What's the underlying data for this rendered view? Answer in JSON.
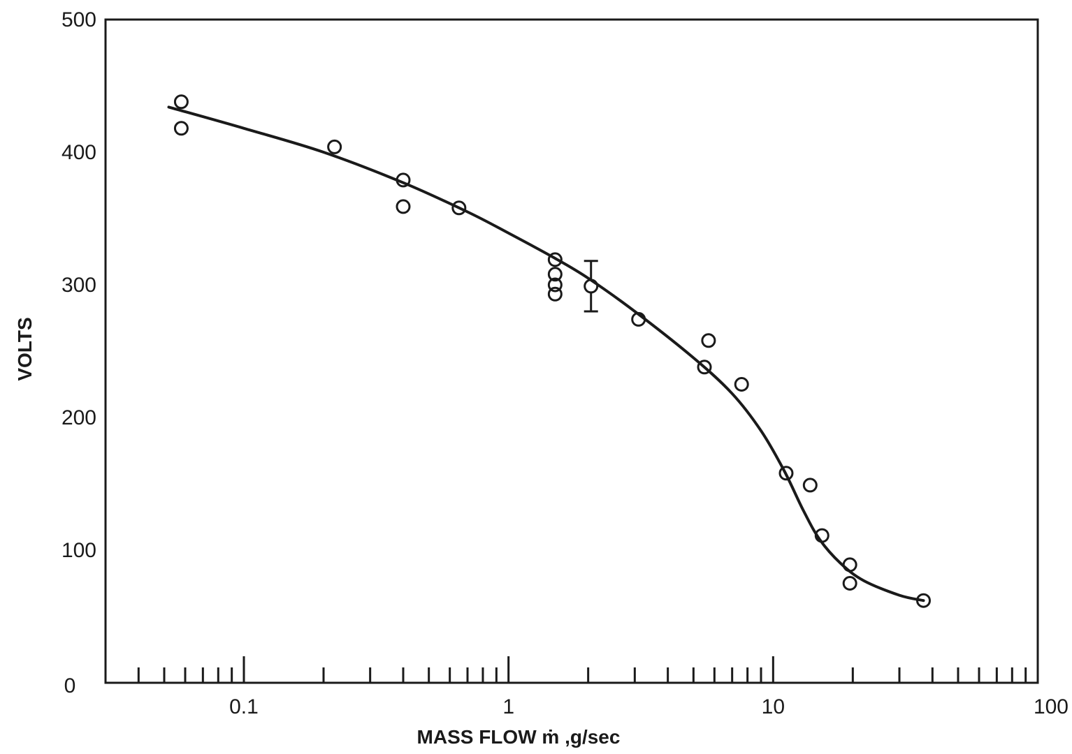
{
  "chart_data": {
    "type": "scatter",
    "title": "",
    "xlabel": "MASS FLOW ṁ ,g/sec",
    "ylabel": "VOLTS",
    "x_scale": "log",
    "xlim": [
      0.03,
      100
    ],
    "ylim": [
      0,
      500
    ],
    "x_tick_labels": [
      {
        "value": 0.1,
        "label": "0.1"
      },
      {
        "value": 1,
        "label": "1"
      },
      {
        "value": 10,
        "label": "10"
      },
      {
        "value": 100,
        "label": "100"
      }
    ],
    "y_tick_labels": [
      {
        "value": 0,
        "label": "0"
      },
      {
        "value": 100,
        "label": "100"
      },
      {
        "value": 200,
        "label": "200"
      },
      {
        "value": 300,
        "label": "300"
      },
      {
        "value": 400,
        "label": "400"
      },
      {
        "value": 500,
        "label": "500"
      }
    ],
    "grid": false,
    "legend": "none",
    "series": [
      {
        "type": "scatter",
        "marker": "open-circle",
        "points": [
          {
            "x": 0.058,
            "y": 438
          },
          {
            "x": 0.058,
            "y": 418
          },
          {
            "x": 0.22,
            "y": 404
          },
          {
            "x": 0.4,
            "y": 379
          },
          {
            "x": 0.4,
            "y": 359
          },
          {
            "x": 0.65,
            "y": 358
          },
          {
            "x": 1.5,
            "y": 319
          },
          {
            "x": 1.5,
            "y": 308
          },
          {
            "x": 1.5,
            "y": 300
          },
          {
            "x": 1.5,
            "y": 293
          },
          {
            "x": 2.05,
            "y": 299,
            "error": [
              280,
              318
            ]
          },
          {
            "x": 3.1,
            "y": 274
          },
          {
            "x": 5.5,
            "y": 238
          },
          {
            "x": 5.7,
            "y": 258
          },
          {
            "x": 7.6,
            "y": 225
          },
          {
            "x": 11.2,
            "y": 158
          },
          {
            "x": 13.8,
            "y": 149
          },
          {
            "x": 15.3,
            "y": 111
          },
          {
            "x": 19.5,
            "y": 89
          },
          {
            "x": 19.5,
            "y": 75
          },
          {
            "x": 37,
            "y": 62
          }
        ]
      },
      {
        "type": "line",
        "smooth": true,
        "points": [
          {
            "x": 0.052,
            "y": 434
          },
          {
            "x": 0.1,
            "y": 418
          },
          {
            "x": 0.2,
            "y": 400
          },
          {
            "x": 0.4,
            "y": 377
          },
          {
            "x": 0.7,
            "y": 355
          },
          {
            "x": 1.0,
            "y": 339
          },
          {
            "x": 1.5,
            "y": 320
          },
          {
            "x": 2.0,
            "y": 305
          },
          {
            "x": 3.0,
            "y": 280
          },
          {
            "x": 5.0,
            "y": 245
          },
          {
            "x": 7.0,
            "y": 218
          },
          {
            "x": 9.0,
            "y": 190
          },
          {
            "x": 11.0,
            "y": 160
          },
          {
            "x": 13.0,
            "y": 130
          },
          {
            "x": 15.0,
            "y": 108
          },
          {
            "x": 18.0,
            "y": 90
          },
          {
            "x": 22.0,
            "y": 77
          },
          {
            "x": 30.0,
            "y": 66
          },
          {
            "x": 37.0,
            "y": 62
          }
        ]
      }
    ]
  }
}
